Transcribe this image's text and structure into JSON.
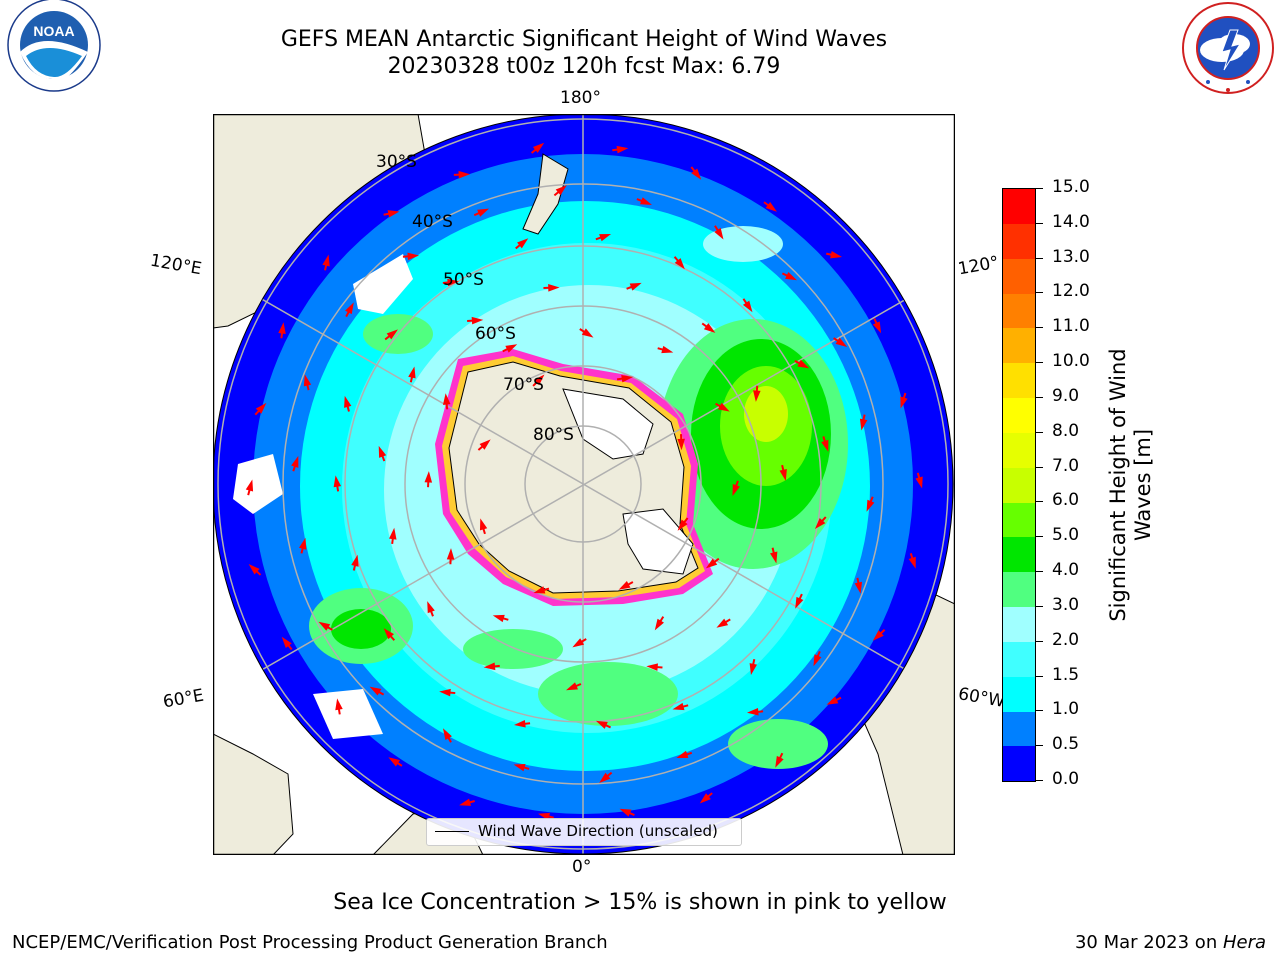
{
  "title": {
    "line1": "GEFS MEAN Antarctic Significant Height of Wind Waves",
    "line2": "20230328 t00z 120h fcst   Max: 6.79"
  },
  "logos": {
    "noaa_text": "NOAA",
    "noaa_ring": "NATIONAL OCEANIC AND ATMOSPHERIC ADMINISTRATION · U.S. DEPARTMENT OF COMMERCE",
    "nws_ring": "NATIONAL WEATHER SERVICE"
  },
  "map": {
    "projection": "south-polar-stereographic",
    "longitude_labels": {
      "top": "180°",
      "bottom": "0°",
      "upper_left": "120°E",
      "lower_left": "60°E",
      "upper_right": "120°",
      "lower_right": "60°W"
    },
    "latitude_labels": [
      "30°S",
      "40°S",
      "50°S",
      "60°S",
      "70°S",
      "80°S"
    ],
    "land_color": "#eeecdc",
    "grid_color": "#b0b0b0",
    "vector_color": "#ff0000",
    "sea_ice_colors": [
      "#ff33cc",
      "#ffcc33"
    ]
  },
  "legend": {
    "label": "Wind Wave Direction (unscaled)"
  },
  "colorbar": {
    "label": "Significant Height of Wind Waves [m]",
    "label_line1": "Significant Height of Wind",
    "label_line2": "Waves [m]",
    "ticks": [
      "0.0",
      "0.5",
      "1.0",
      "1.5",
      "2.0",
      "3.0",
      "4.0",
      "5.0",
      "6.0",
      "7.0",
      "8.0",
      "9.0",
      "10.0",
      "11.0",
      "12.0",
      "13.0",
      "14.0",
      "15.0"
    ],
    "levels": [
      0.0,
      0.5,
      1.0,
      1.5,
      2.0,
      3.0,
      4.0,
      5.0,
      6.0,
      7.0,
      8.0,
      9.0,
      10.0,
      11.0,
      12.0,
      13.0,
      14.0,
      15.0
    ],
    "colors": [
      "#0000ff",
      "#0080ff",
      "#00ffff",
      "#40ffff",
      "#a0ffff",
      "#50ff80",
      "#00e600",
      "#66ff00",
      "#c8ff00",
      "#e6ff00",
      "#ffff00",
      "#ffe000",
      "#ffb000",
      "#ff8000",
      "#ff6000",
      "#ff3000",
      "#ff0000"
    ]
  },
  "subtitle": "Sea Ice Concentration > 15% is shown in pink to yellow",
  "footer": {
    "left": "NCEP/EMC/Verification Post Processing Product Generation Branch",
    "right_date": "30 Mar 2023 on ",
    "right_machine": "Hera"
  }
}
